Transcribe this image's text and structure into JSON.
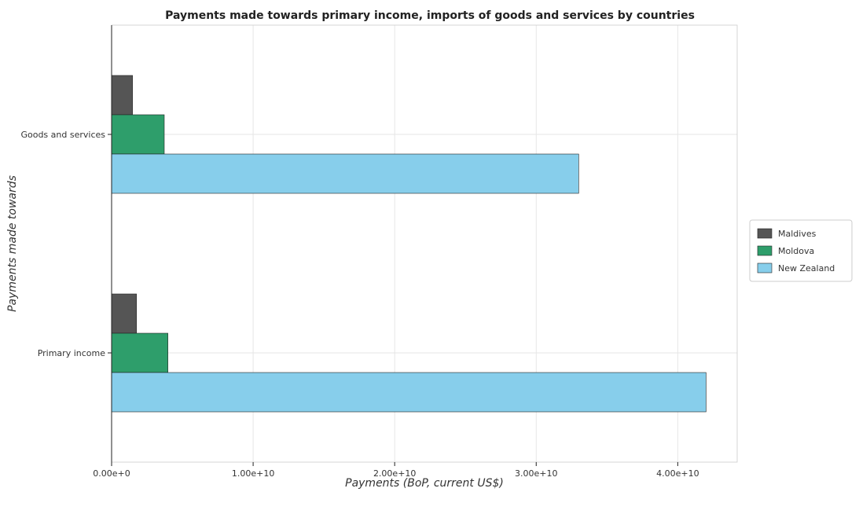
{
  "chart_data": {
    "type": "bar",
    "orientation": "horizontal",
    "title": "Payments made towards primary income, imports of goods and services by countries",
    "xlabel": "Payments (BoP, current US$)",
    "ylabel": "Payments made towards",
    "categories": [
      "Goods and services",
      "Primary income"
    ],
    "series": [
      {
        "name": "Maldives",
        "color": "#555555",
        "values": [
          1480000000.0,
          1760000000.0
        ]
      },
      {
        "name": "Moldova",
        "color": "#2e9e6b",
        "values": [
          3720000000.0,
          3980000000.0
        ]
      },
      {
        "name": "New Zealand",
        "color": "#87ceeb",
        "values": [
          33000000000.0,
          42000000000.0
        ]
      }
    ],
    "xlim": [
      0,
      44200000000.0
    ],
    "xticks": [
      0,
      10000000000.0,
      20000000000.0,
      30000000000.0,
      40000000000.0
    ],
    "xtick_labels": [
      "0.00e+0",
      "1.00e+10",
      "2.00e+10",
      "3.00e+10",
      "4.00e+10"
    ],
    "grid": true,
    "legend_position": "right"
  }
}
